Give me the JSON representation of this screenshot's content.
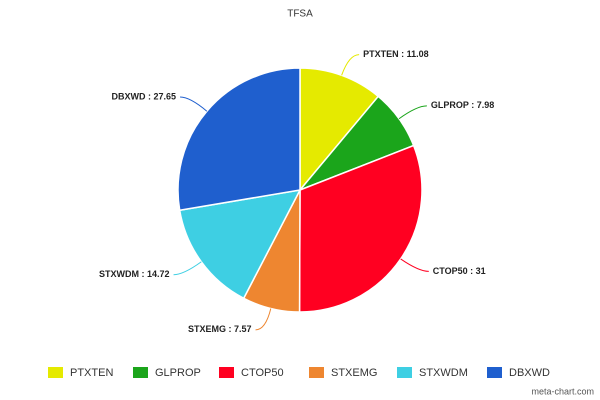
{
  "chart_data": {
    "type": "pie",
    "title": "TFSA",
    "categories": [
      "PTXTEN",
      "GLPROP",
      "CTOP50",
      "STXEMG",
      "STXWDM",
      "DBXWD"
    ],
    "values": [
      11.08,
      7.98,
      31,
      7.57,
      14.72,
      27.65
    ],
    "value_labels": [
      "PTXTEN : 11.08",
      "GLPROP : 7.98",
      "CTOP50 : 31",
      "STXEMG : 7.57",
      "STXWDM : 14.72",
      "DBXWD : 27.65"
    ],
    "colors": [
      "#e5ea00",
      "#1ba51b",
      "#ff0021",
      "#ee8630",
      "#3ecfe3",
      "#1f5fce"
    ],
    "legend": "bottom",
    "credit": "meta-chart.com"
  }
}
